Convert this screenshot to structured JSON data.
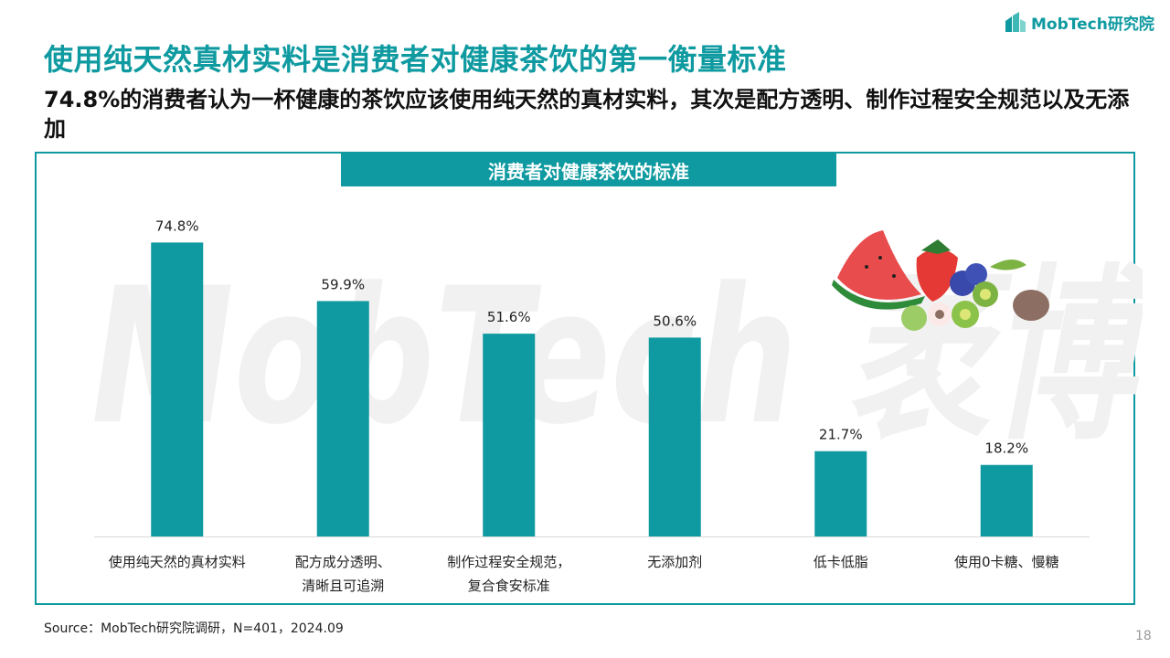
{
  "header": {
    "logo_text": "MobTech研究院",
    "title": "使用纯天然真材实料是消费者对健康茶饮的第一衡量标准",
    "subtitle": "74.8%的消费者认为一杯健康的茶饮应该使用纯天然的真材实料，其次是配方透明、制作过程安全规范以及无添加"
  },
  "watermark_text": "MobTech 袤博",
  "chart_data": {
    "type": "bar",
    "title": "消费者对健康茶饮的标准",
    "categories": [
      [
        "使用纯天然的真材实料"
      ],
      [
        "配方成分透明、",
        "清晰且可追溯"
      ],
      [
        "制作过程安全规范，",
        "复合食安标准"
      ],
      [
        "无添加剂"
      ],
      [
        "低卡低脂"
      ],
      [
        "使用0卡糖、慢糖"
      ]
    ],
    "values": [
      74.8,
      59.9,
      51.6,
      50.6,
      21.7,
      18.2
    ],
    "value_labels": [
      "74.8%",
      "59.9%",
      "51.6%",
      "50.6%",
      "21.7%",
      "18.2%"
    ],
    "unit": "%",
    "ylim": [
      0,
      80
    ],
    "xlabel": "",
    "ylabel": "",
    "grid": false,
    "bar_color": "#0e9aa0",
    "axis_color": "#d9d9d9"
  },
  "footer": {
    "source": "Source：MobTech研究院调研，N=401，2024.09",
    "page_number": "18"
  },
  "colors": {
    "accent": "#0e9aa0",
    "text": "#111111"
  }
}
